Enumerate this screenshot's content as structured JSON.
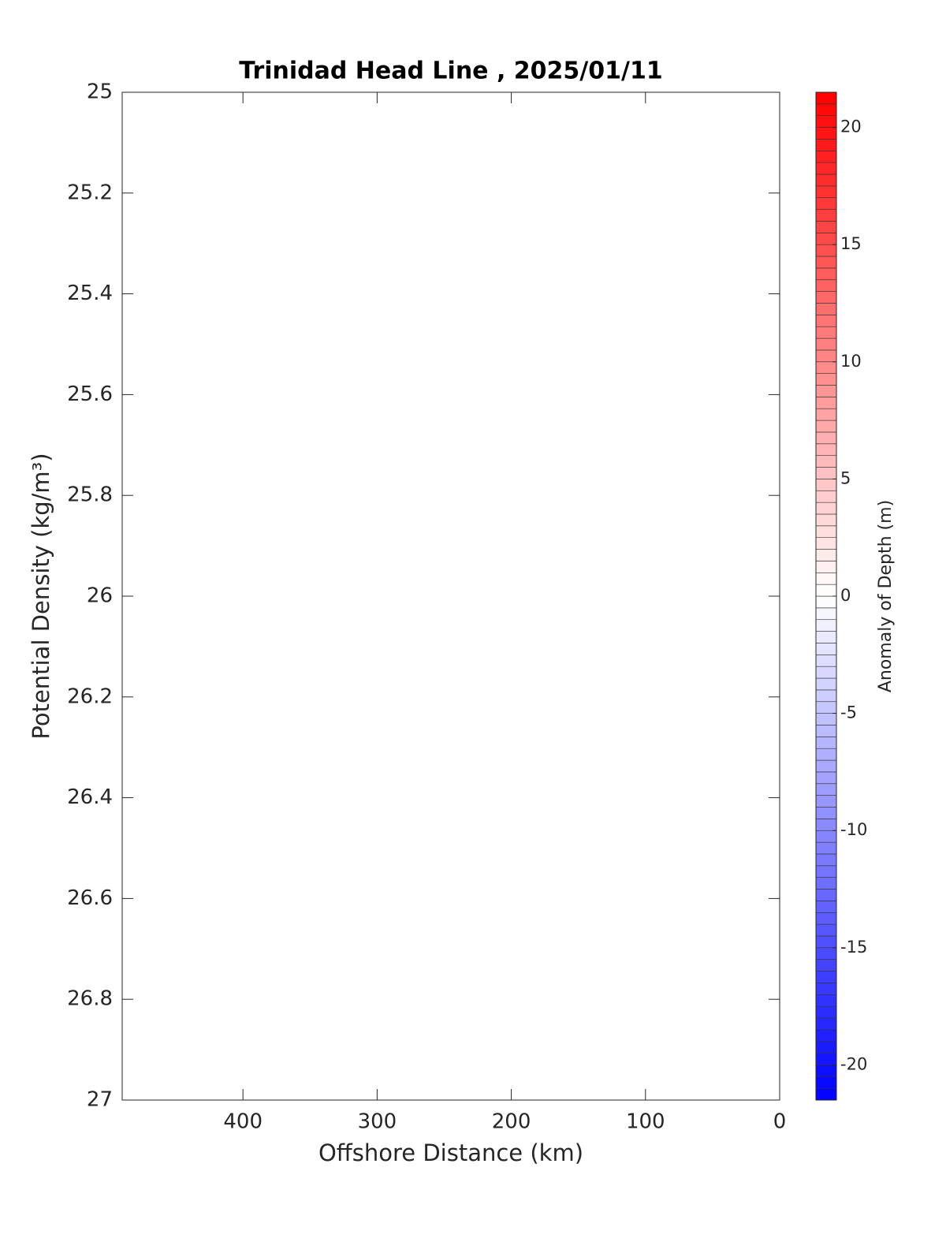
{
  "chart_data": {
    "type": "contour",
    "title": "Trinidad Head Line , 2025/01/11",
    "xlabel": "Offshore Distance (km)",
    "ylabel": "Potential Density (kg/m³)",
    "xlim": [
      490,
      0
    ],
    "xticks": [
      400,
      300,
      200,
      100,
      0
    ],
    "ylim": [
      25,
      27
    ],
    "yticks": [
      25,
      25.2,
      25.4,
      25.6,
      25.8,
      26,
      26.2,
      26.4,
      26.6,
      26.8,
      27
    ],
    "y_reversed": true,
    "series": [],
    "colorbar": {
      "label": "Anomaly of Depth (m)",
      "clim": [
        -21.5,
        21.5
      ],
      "ticks": [
        -20,
        -15,
        -10,
        -5,
        0,
        5,
        10,
        15,
        20
      ],
      "colors": [
        "#0000ff",
        "#ffffff",
        "#ff0000"
      ],
      "level_step": 0.5
    }
  }
}
